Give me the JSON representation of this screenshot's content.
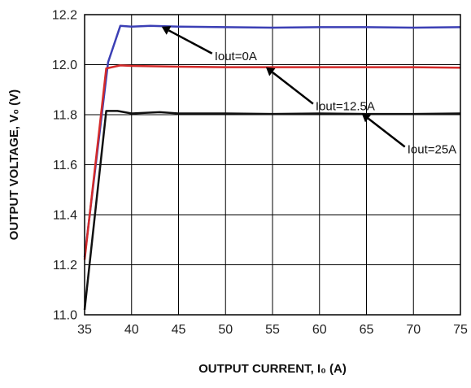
{
  "chart_data": {
    "type": "line",
    "title": "",
    "xlabel": "OUTPUT CURRENT, I₀ (A)",
    "ylabel": "OUTPUT VOLTAGE, V₀ (V)",
    "xlim": [
      35,
      75
    ],
    "ylim": [
      11.0,
      12.2
    ],
    "grid": true,
    "x_ticks": [
      "35",
      "40",
      "45",
      "50",
      "55",
      "60",
      "65",
      "70",
      "75"
    ],
    "y_ticks": [
      "11.0",
      "11.2",
      "11.4",
      "11.6",
      "11.8",
      "12.0",
      "12.2"
    ],
    "series": [
      {
        "name": "Iout=0A",
        "color": "#3b3fb5",
        "points": [
          [
            35,
            11.23
          ],
          [
            37.5,
            12.01
          ],
          [
            38.8,
            12.155
          ],
          [
            40,
            12.152
          ],
          [
            42,
            12.155
          ],
          [
            45,
            12.152
          ],
          [
            50,
            12.15
          ],
          [
            55,
            12.148
          ],
          [
            60,
            12.15
          ],
          [
            65,
            12.15
          ],
          [
            70,
            12.148
          ],
          [
            75,
            12.15
          ]
        ]
      },
      {
        "name": "Iout=12.5A",
        "color": "#d42a2a",
        "points": [
          [
            35,
            11.22
          ],
          [
            37.3,
            11.985
          ],
          [
            38.8,
            11.997
          ],
          [
            40,
            11.995
          ],
          [
            45,
            11.992
          ],
          [
            50,
            11.99
          ],
          [
            55,
            11.99
          ],
          [
            60,
            11.99
          ],
          [
            65,
            11.99
          ],
          [
            70,
            11.99
          ],
          [
            75,
            11.988
          ]
        ]
      },
      {
        "name": "Iout=25A",
        "color": "#111111",
        "points": [
          [
            35,
            11.02
          ],
          [
            37.3,
            11.815
          ],
          [
            38.5,
            11.815
          ],
          [
            40,
            11.805
          ],
          [
            43,
            11.81
          ],
          [
            45,
            11.805
          ],
          [
            50,
            11.805
          ],
          [
            55,
            11.803
          ],
          [
            60,
            11.805
          ],
          [
            65,
            11.803
          ],
          [
            70,
            11.803
          ],
          [
            75,
            11.805
          ]
        ]
      }
    ],
    "annotations": [
      {
        "label": "Iout=0A",
        "arrow_to": [
          43.2,
          12.152
        ]
      },
      {
        "label": "Iout=12.5A",
        "arrow_to": [
          54.3,
          11.99
        ]
      },
      {
        "label": "Iout=25A",
        "arrow_to": [
          64.5,
          11.805
        ]
      }
    ]
  }
}
